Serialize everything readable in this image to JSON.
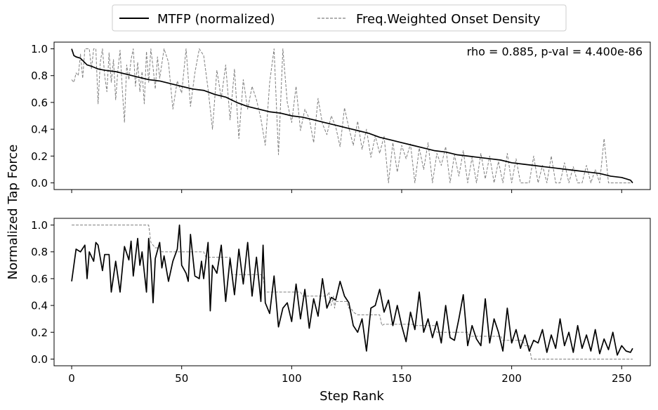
{
  "legend": {
    "placement": "top-center",
    "entries": [
      {
        "label": "MTFP (normalized)",
        "color": "#000000",
        "style": "solid"
      },
      {
        "label": "Freq.Weighted Onset Density",
        "color": "#808080",
        "style": "dashed"
      }
    ]
  },
  "shared_ylabel": "Normalized Tap Force",
  "chart_data": [
    {
      "type": "line",
      "panel": "top",
      "annotation": "rho = 0.885, p-val = 4.400e-86",
      "xlim": [
        -8,
        263
      ],
      "ylim": [
        -0.05,
        1.05
      ],
      "xticks": [
        0,
        50,
        100,
        150,
        200,
        250
      ],
      "yticks": [
        0.0,
        0.2,
        0.4,
        0.6,
        0.8,
        1.0
      ],
      "ytick_labels": [
        "0.0",
        "0.2",
        "0.4",
        "0.6",
        "0.8",
        "1.0"
      ],
      "x_tick_labels_visible": false,
      "series": [
        {
          "name": "MTFP (normalized)",
          "color": "#000000",
          "style": "solid",
          "x": [
            0,
            1,
            2,
            4,
            7,
            9,
            12,
            15,
            20,
            25,
            30,
            35,
            40,
            45,
            50,
            55,
            60,
            65,
            70,
            75,
            80,
            85,
            90,
            95,
            100,
            105,
            110,
            115,
            120,
            125,
            130,
            135,
            140,
            145,
            150,
            155,
            160,
            165,
            170,
            175,
            180,
            185,
            190,
            195,
            200,
            205,
            210,
            215,
            220,
            225,
            230,
            235,
            240,
            245,
            250,
            252,
            254,
            255
          ],
          "values": [
            1.0,
            0.95,
            0.94,
            0.93,
            0.88,
            0.87,
            0.85,
            0.84,
            0.83,
            0.81,
            0.79,
            0.77,
            0.76,
            0.74,
            0.72,
            0.7,
            0.69,
            0.66,
            0.64,
            0.6,
            0.57,
            0.55,
            0.53,
            0.52,
            0.5,
            0.49,
            0.47,
            0.45,
            0.43,
            0.41,
            0.39,
            0.37,
            0.34,
            0.32,
            0.3,
            0.28,
            0.26,
            0.24,
            0.23,
            0.21,
            0.2,
            0.19,
            0.18,
            0.17,
            0.15,
            0.14,
            0.13,
            0.12,
            0.11,
            0.1,
            0.09,
            0.08,
            0.07,
            0.05,
            0.04,
            0.03,
            0.02,
            0.0
          ]
        },
        {
          "name": "Freq.Weighted Onset Density",
          "color": "#808080",
          "style": "dashed",
          "x": [
            0,
            1,
            2,
            3,
            4,
            5,
            6,
            7,
            8,
            9,
            10,
            11,
            12,
            13,
            14,
            15,
            16,
            17,
            18,
            19,
            20,
            21,
            22,
            23,
            24,
            25,
            26,
            27,
            28,
            29,
            30,
            31,
            32,
            33,
            34,
            35,
            36,
            37,
            38,
            39,
            40,
            42,
            44,
            46,
            48,
            50,
            52,
            54,
            56,
            58,
            60,
            62,
            64,
            66,
            68,
            70,
            72,
            74,
            76,
            78,
            80,
            82,
            84,
            86,
            88,
            90,
            92,
            94,
            96,
            98,
            100,
            102,
            104,
            106,
            108,
            110,
            112,
            114,
            116,
            118,
            120,
            122,
            124,
            126,
            128,
            130,
            132,
            134,
            136,
            138,
            140,
            142,
            144,
            146,
            148,
            150,
            152,
            154,
            156,
            158,
            160,
            162,
            164,
            166,
            168,
            170,
            172,
            174,
            176,
            178,
            180,
            182,
            184,
            186,
            188,
            190,
            192,
            194,
            196,
            198,
            200,
            202,
            204,
            206,
            208,
            210,
            212,
            214,
            216,
            218,
            220,
            222,
            224,
            226,
            228,
            230,
            232,
            234,
            236,
            238,
            240,
            242,
            244,
            246,
            248,
            250,
            252,
            254,
            255
          ],
          "values": [
            0.77,
            0.75,
            0.82,
            0.8,
            0.96,
            0.78,
            1.0,
            1.0,
            1.0,
            0.85,
            1.0,
            1.0,
            0.59,
            0.9,
            1.0,
            0.8,
            0.68,
            0.97,
            0.75,
            0.92,
            0.62,
            0.84,
            0.99,
            0.7,
            0.45,
            0.88,
            0.77,
            0.92,
            1.0,
            0.72,
            0.9,
            0.68,
            0.83,
            0.59,
            0.98,
            0.75,
            1.0,
            0.86,
            0.7,
            0.94,
            0.78,
            1.0,
            0.9,
            0.55,
            0.76,
            0.67,
            1.0,
            0.57,
            0.82,
            1.0,
            0.95,
            0.7,
            0.4,
            0.84,
            0.63,
            0.88,
            0.47,
            0.85,
            0.33,
            0.77,
            0.55,
            0.72,
            0.62,
            0.48,
            0.28,
            0.75,
            1.0,
            0.21,
            1.0,
            0.6,
            0.45,
            0.72,
            0.39,
            0.55,
            0.48,
            0.3,
            0.63,
            0.44,
            0.36,
            0.5,
            0.42,
            0.27,
            0.56,
            0.41,
            0.28,
            0.46,
            0.25,
            0.4,
            0.19,
            0.35,
            0.22,
            0.35,
            0.0,
            0.3,
            0.08,
            0.28,
            0.18,
            0.29,
            0.0,
            0.26,
            0.1,
            0.3,
            0.0,
            0.22,
            0.13,
            0.27,
            0.0,
            0.21,
            0.05,
            0.24,
            0.0,
            0.19,
            0.0,
            0.22,
            0.03,
            0.2,
            0.0,
            0.16,
            0.0,
            0.22,
            0.0,
            0.18,
            0.0,
            0.0,
            0.0,
            0.2,
            0.0,
            0.13,
            0.0,
            0.2,
            0.0,
            0.0,
            0.15,
            0.0,
            0.12,
            0.0,
            0.0,
            0.13,
            0.0,
            0.1,
            0.0,
            0.33,
            0.0,
            0.0,
            0.0,
            0.0,
            0.0,
            0.0,
            0.0
          ]
        }
      ]
    },
    {
      "type": "line",
      "panel": "bottom",
      "xlabel": "Step Rank",
      "xlim": [
        -8,
        263
      ],
      "ylim": [
        -0.05,
        1.05
      ],
      "xticks": [
        0,
        50,
        100,
        150,
        200,
        250
      ],
      "xtick_labels": [
        "0",
        "50",
        "100",
        "150",
        "200",
        "250"
      ],
      "yticks": [
        0.0,
        0.2,
        0.4,
        0.6,
        0.8,
        1.0
      ],
      "ytick_labels": [
        "0.0",
        "0.2",
        "0.4",
        "0.6",
        "0.8",
        "1.0"
      ],
      "series": [
        {
          "name": "MTFP (normalized)",
          "color": "#000000",
          "style": "solid",
          "x": [
            0,
            2,
            4,
            6,
            7,
            8,
            10,
            11,
            12,
            14,
            15,
            17,
            18,
            20,
            22,
            24,
            26,
            27,
            28,
            30,
            31,
            32,
            34,
            35,
            36,
            37,
            38,
            40,
            41,
            42,
            44,
            46,
            48,
            49,
            50,
            52,
            53,
            54,
            56,
            58,
            59,
            60,
            62,
            63,
            64,
            66,
            68,
            70,
            72,
            74,
            76,
            78,
            80,
            82,
            84,
            86,
            87,
            88,
            90,
            92,
            94,
            96,
            98,
            100,
            102,
            104,
            106,
            108,
            110,
            112,
            114,
            116,
            118,
            120,
            122,
            124,
            126,
            128,
            130,
            132,
            134,
            136,
            138,
            140,
            142,
            144,
            146,
            148,
            150,
            152,
            154,
            156,
            158,
            160,
            162,
            164,
            166,
            168,
            170,
            172,
            174,
            176,
            178,
            180,
            182,
            184,
            186,
            188,
            190,
            192,
            194,
            196,
            198,
            200,
            202,
            204,
            206,
            208,
            210,
            212,
            214,
            216,
            218,
            220,
            222,
            224,
            226,
            228,
            230,
            232,
            234,
            236,
            238,
            240,
            242,
            244,
            246,
            248,
            250,
            252,
            254,
            255
          ],
          "values": [
            0.58,
            0.82,
            0.8,
            0.85,
            0.6,
            0.8,
            0.73,
            0.87,
            0.85,
            0.66,
            0.78,
            0.78,
            0.5,
            0.73,
            0.5,
            0.84,
            0.74,
            0.88,
            0.62,
            0.9,
            0.7,
            0.8,
            0.5,
            0.9,
            0.73,
            0.42,
            0.75,
            0.87,
            0.68,
            0.77,
            0.58,
            0.73,
            0.82,
            1.0,
            0.7,
            0.64,
            0.58,
            0.93,
            0.62,
            0.6,
            0.73,
            0.6,
            0.87,
            0.36,
            0.7,
            0.64,
            0.85,
            0.43,
            0.75,
            0.48,
            0.82,
            0.56,
            0.87,
            0.47,
            0.76,
            0.43,
            0.85,
            0.42,
            0.34,
            0.62,
            0.24,
            0.38,
            0.42,
            0.28,
            0.56,
            0.3,
            0.52,
            0.23,
            0.45,
            0.32,
            0.6,
            0.38,
            0.46,
            0.44,
            0.58,
            0.47,
            0.42,
            0.25,
            0.2,
            0.3,
            0.06,
            0.38,
            0.4,
            0.52,
            0.35,
            0.44,
            0.25,
            0.4,
            0.25,
            0.13,
            0.35,
            0.22,
            0.5,
            0.2,
            0.3,
            0.16,
            0.28,
            0.12,
            0.4,
            0.16,
            0.14,
            0.3,
            0.48,
            0.1,
            0.25,
            0.15,
            0.1,
            0.45,
            0.12,
            0.3,
            0.2,
            0.06,
            0.38,
            0.12,
            0.22,
            0.08,
            0.18,
            0.06,
            0.14,
            0.12,
            0.22,
            0.05,
            0.18,
            0.08,
            0.3,
            0.1,
            0.2,
            0.05,
            0.25,
            0.08,
            0.18,
            0.06,
            0.22,
            0.04,
            0.15,
            0.07,
            0.2,
            0.03,
            0.1,
            0.06,
            0.05,
            0.08
          ]
        },
        {
          "name": "Freq.Weighted Onset Density",
          "color": "#808080",
          "style": "dashed",
          "x": [
            0,
            35,
            36,
            38,
            40,
            41,
            60,
            61,
            72,
            73,
            86,
            87,
            88,
            104,
            105,
            116,
            117,
            117.5,
            118,
            119,
            119.5,
            120,
            125,
            126,
            127,
            128,
            130,
            140,
            141,
            142,
            155,
            156,
            165,
            166,
            170,
            171,
            180,
            181,
            188,
            189,
            195,
            196,
            205,
            206,
            208,
            209,
            255
          ],
          "values": [
            1.0,
            1.0,
            0.87,
            0.83,
            0.83,
            0.8,
            0.8,
            0.76,
            0.76,
            0.63,
            0.63,
            0.62,
            0.5,
            0.5,
            0.47,
            0.47,
            0.5,
            0.42,
            0.4,
            0.47,
            0.38,
            0.43,
            0.43,
            0.38,
            0.38,
            0.35,
            0.33,
            0.33,
            0.25,
            0.26,
            0.26,
            0.25,
            0.25,
            0.2,
            0.2,
            0.2,
            0.2,
            0.17,
            0.17,
            0.17,
            0.17,
            0.14,
            0.14,
            0.1,
            0.1,
            0.0,
            0.0
          ]
        }
      ]
    }
  ]
}
